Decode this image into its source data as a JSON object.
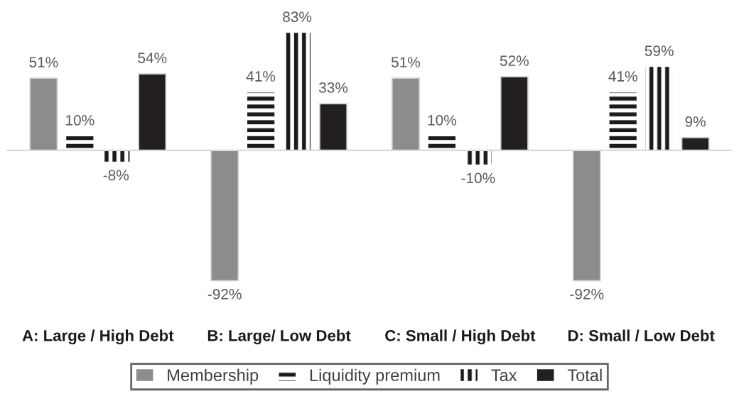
{
  "chart_data": {
    "type": "bar",
    "categories": [
      "A: Large / High Debt",
      "B: Large/ Low Debt",
      "C: Small / High Debt",
      "D: Small / Low Debt"
    ],
    "series": [
      {
        "name": "Membership",
        "color": "#8c8c8c",
        "values": [
          51,
          -92,
          51,
          -92
        ],
        "value_labels": [
          "51%",
          "-92%",
          "51%",
          "-92%"
        ]
      },
      {
        "name": "Liquidity premium",
        "color": "#1a1a1a",
        "values": [
          10,
          41,
          10,
          41
        ],
        "value_labels": [
          "10%",
          "41%",
          "10%",
          "41%"
        ]
      },
      {
        "name": "Tax",
        "color": "#1a1a1a",
        "values": [
          -8,
          83,
          -10,
          59
        ],
        "value_labels": [
          "-8%",
          "83%",
          "-10%",
          "59%"
        ]
      },
      {
        "name": "Total",
        "color": "#231f20",
        "values": [
          54,
          33,
          52,
          9
        ],
        "value_labels": [
          "54%",
          "33%",
          "52%",
          "9%"
        ]
      }
    ],
    "legend": "bottom"
  }
}
